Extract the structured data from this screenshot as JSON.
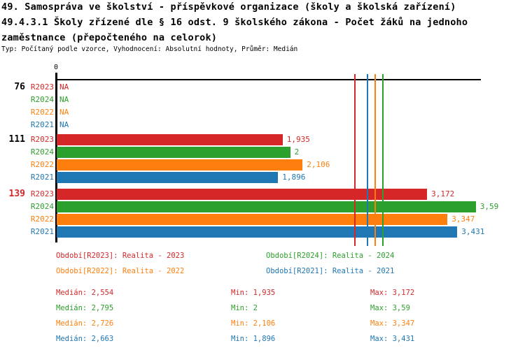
{
  "header": {
    "lines": [
      "49. Samospráva ve školství - příspěvkové organizace (školy a školská zařízení)",
      "49.4.3.1 Školy zřízené dle § 16 odst. 9 školského zákona - Počet žáků na jednoho",
      "zaměstnance (přepočteného na celorok)",
      "Typ: Počítaný podle vzorce, Vyhodnocení: Absolutní hodnoty, Průměr: Medián"
    ]
  },
  "chart_data": {
    "type": "bar",
    "orientation": "horizontal",
    "title": "49.4.3.1 Školy zřízené dle § 16 odst. 9 školského zákona - Počet žáků na jednoho zaměstnance (přepočteného na celorok)",
    "xlim": [
      0,
      3.63
    ],
    "x_axis": {
      "origin_tick_label": "0"
    },
    "series_order": [
      "R2023",
      "R2024",
      "R2022",
      "R2021"
    ],
    "series_colors": {
      "R2023": "#d62728",
      "R2024": "#2ca02c",
      "R2022": "#ff7f0e",
      "R2021": "#1f77b4"
    },
    "groups": [
      {
        "label": "76",
        "label_color": "#000000",
        "values": [
          null,
          null,
          null,
          null
        ],
        "displays": [
          "NA",
          "NA",
          "NA",
          "NA"
        ]
      },
      {
        "label": "111",
        "label_color": "#000000",
        "values": [
          1.935,
          2,
          2.106,
          1.896
        ],
        "displays": [
          "1,935",
          "2",
          "2,106",
          "1,896"
        ]
      },
      {
        "label": "139",
        "label_color": "#d62728",
        "values": [
          3.172,
          3.59,
          3.347,
          3.431
        ],
        "displays": [
          "3,172",
          "3,59",
          "3,347",
          "3,431"
        ]
      }
    ],
    "median_lines": [
      {
        "series": "R2023",
        "value": 2.554,
        "color": "#d62728"
      },
      {
        "series": "R2021",
        "value": 2.663,
        "color": "#1f77b4"
      },
      {
        "series": "R2022",
        "value": 2.726,
        "color": "#ff7f0e"
      },
      {
        "series": "R2024",
        "value": 2.795,
        "color": "#2ca02c"
      }
    ]
  },
  "legend": {
    "items": [
      {
        "label": "Období[R2023]: Realita - 2023",
        "color": "#d62728"
      },
      {
        "label": "Období[R2024]: Realita - 2024",
        "color": "#2ca02c"
      },
      {
        "label": "Období[R2022]: Realita - 2022",
        "color": "#ff7f0e"
      },
      {
        "label": "Období[R2021]: Realita - 2021",
        "color": "#1f77b4"
      }
    ]
  },
  "stats": {
    "prefixes": {
      "median": "Medián",
      "min": "Min",
      "max": "Max"
    },
    "rows": [
      {
        "series": "R2023",
        "color": "#d62728",
        "median": "2,554",
        "min": "1,935",
        "max": "3,172"
      },
      {
        "series": "R2024",
        "color": "#2ca02c",
        "median": "2,795",
        "min": "2",
        "max": "3,59"
      },
      {
        "series": "R2022",
        "color": "#ff7f0e",
        "median": "2,726",
        "min": "2,106",
        "max": "3,347"
      },
      {
        "series": "R2021",
        "color": "#1f77b4",
        "median": "2,663",
        "min": "1,896",
        "max": "3,431"
      }
    ]
  }
}
